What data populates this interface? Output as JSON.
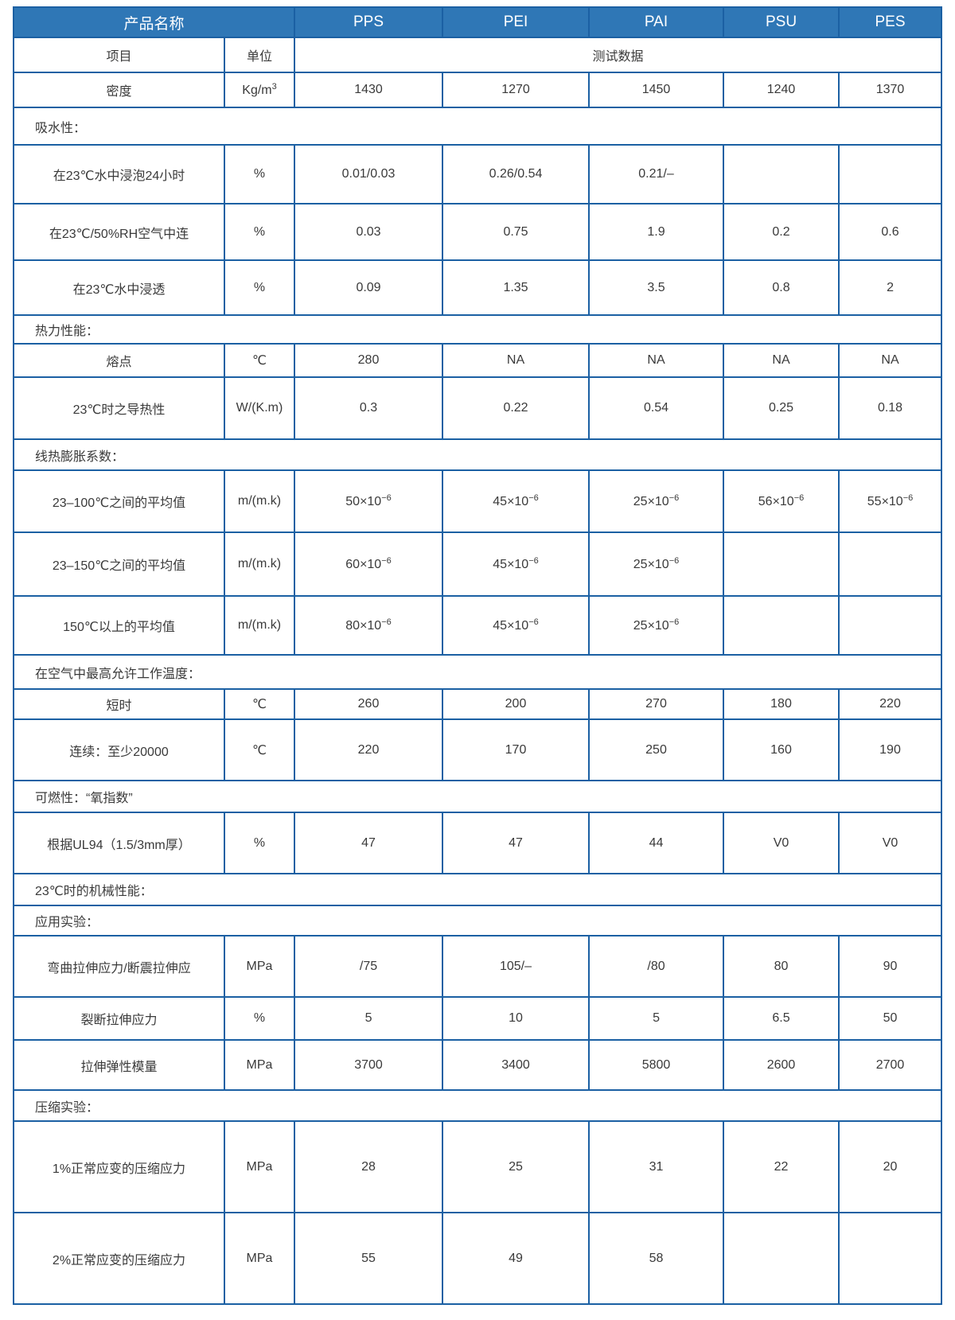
{
  "header": {
    "title": "产品名称",
    "materials": [
      "PPS",
      "PEI",
      "PAI",
      "PSU",
      "PES"
    ]
  },
  "subheader": {
    "item": "项目",
    "unit": "单位",
    "data": "测试数据"
  },
  "rows": [
    {
      "label": "密度",
      "unit": "Kg/m",
      "unit_sup": "3",
      "values": [
        "1430",
        "1270",
        "1450",
        "1240",
        "1370"
      ],
      "h": 44
    },
    {
      "section": "吸水性：",
      "h": 47
    },
    {
      "label": "在23℃水中浸泡24小时",
      "unit": "%",
      "values": [
        "0.01/0.03",
        "0.26/0.54",
        "0.21/–",
        "",
        ""
      ],
      "h": 74
    },
    {
      "label": "在23℃/50%RH空气中连",
      "unit": "%",
      "values": [
        "0.03",
        "0.75",
        "1.9",
        "0.2",
        "0.6"
      ],
      "h": 71
    },
    {
      "label": "在23℃水中浸透",
      "unit": "%",
      "values": [
        "0.09",
        "1.35",
        "3.5",
        "0.8",
        "2"
      ],
      "h": 69
    },
    {
      "section": "热力性能：",
      "h": 36
    },
    {
      "label": "熔点",
      "unit": "℃",
      "values": [
        "280",
        "NA",
        "NA",
        "NA",
        "NA"
      ],
      "h": 42
    },
    {
      "label": "23℃时之导热性",
      "unit": "W/(K.m)",
      "values": [
        "0.3",
        "0.22",
        "0.54",
        "0.25",
        "0.18"
      ],
      "h": 78
    },
    {
      "section": "线热膨胀系数：",
      "h": 39
    },
    {
      "label": "23–100℃之间的平均值",
      "unit": "m/(m.k)",
      "values": [
        "50×10",
        "45×10",
        "25×10",
        "56×10",
        "55×10"
      ],
      "value_sup": "−6",
      "h": 78
    },
    {
      "label": "23–150℃之间的平均值",
      "unit": "m/(m.k)",
      "values": [
        "60×10",
        "45×10",
        "25×10",
        "",
        ""
      ],
      "value_sup": "−6",
      "h": 80
    },
    {
      "label": "150℃以上的平均值",
      "unit": "m/(m.k)",
      "values": [
        "80×10",
        "45×10",
        "25×10",
        "",
        ""
      ],
      "value_sup": "−6",
      "h": 74
    },
    {
      "section": "在空气中最高允许工作温度：",
      "h": 43
    },
    {
      "label": "短时",
      "unit": "℃",
      "values": [
        "260",
        "200",
        "270",
        "180",
        "220"
      ],
      "h": 38
    },
    {
      "label": "连续：至少20000",
      "unit": "℃",
      "values": [
        "220",
        "170",
        "250",
        "160",
        "190"
      ],
      "h": 77
    },
    {
      "section": "可燃性：“氧指数”",
      "h": 40
    },
    {
      "label": "根据UL94（1.5/3mm厚）",
      "unit": "%",
      "values": [
        "47",
        "47",
        "44",
        "V0",
        "V0"
      ],
      "h": 77
    },
    {
      "section": "23℃时的机械性能：",
      "h": 40
    },
    {
      "section": "应用实验：",
      "h": 38
    },
    {
      "label": "弯曲拉伸应力/断震拉伸应",
      "unit": "MPa",
      "values": [
        "/75",
        "105/–",
        "/80",
        "80",
        "90"
      ],
      "h": 77
    },
    {
      "label": "裂断拉伸应力",
      "unit": "%",
      "values": [
        "5",
        "10",
        "5",
        "6.5",
        "50"
      ],
      "h": 54
    },
    {
      "label": "拉伸弹性模量",
      "unit": "MPa",
      "values": [
        "3700",
        "3400",
        "5800",
        "2600",
        "2700"
      ],
      "h": 63
    },
    {
      "section": "压缩实验：",
      "h": 39
    },
    {
      "label": "1%正常应变的压缩应力",
      "unit": "MPa",
      "values": [
        "28",
        "25",
        "31",
        "22",
        "20"
      ],
      "h": 115
    },
    {
      "label": "2%正常应变的压缩应力",
      "unit": "MPa",
      "values": [
        "55",
        "49",
        "58",
        "",
        ""
      ],
      "h": 115
    }
  ],
  "colors": {
    "header_bg": "#2f77b6",
    "border": "#1b60a3",
    "text": "#3a3a3a"
  }
}
